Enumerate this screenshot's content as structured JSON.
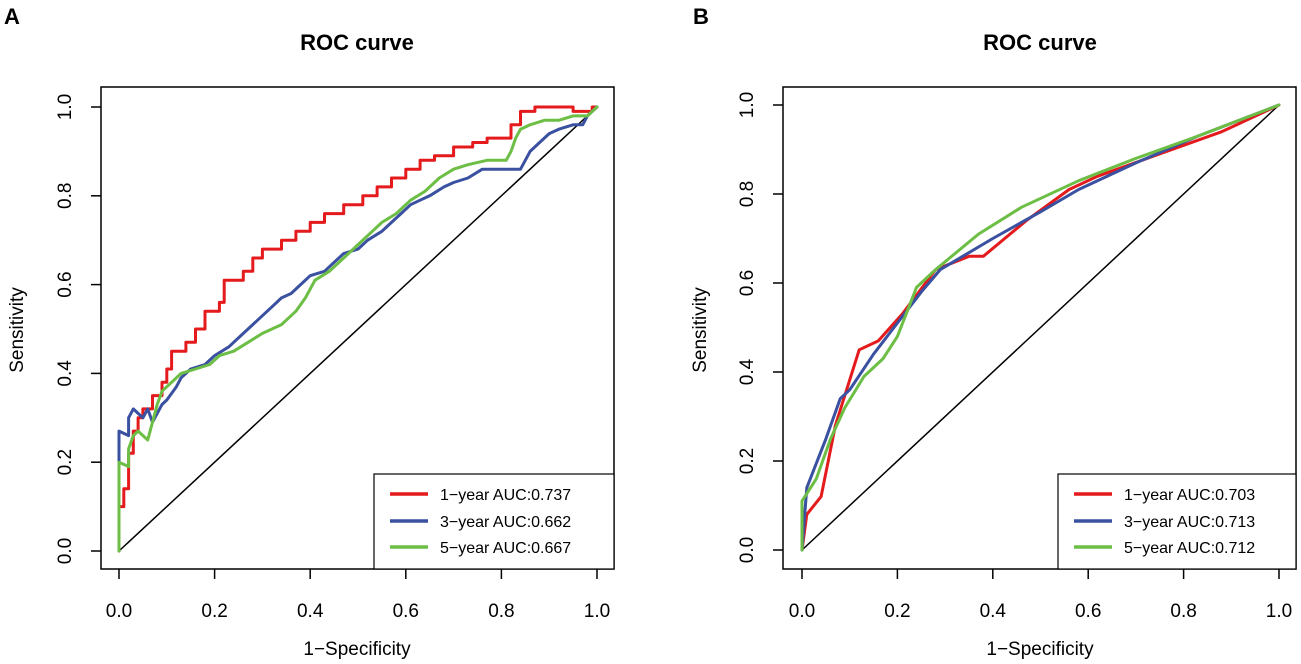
{
  "colors": {
    "one_year": "#e41a1c",
    "three_year": "#3a50a0",
    "five_year": "#6cbe45",
    "diagonal": "#000000",
    "frame": "#000000"
  },
  "chart_data": [
    {
      "panel": "A",
      "type": "line",
      "title": "ROC curve",
      "xlabel": "1−Specificity",
      "ylabel": "Sensitivity",
      "xlim": [
        0,
        1
      ],
      "ylim": [
        0,
        1
      ],
      "xticks": [
        "0.0",
        "0.2",
        "0.4",
        "0.6",
        "0.8",
        "1.0"
      ],
      "yticks": [
        "0.0",
        "0.2",
        "0.4",
        "0.6",
        "0.8",
        "1.0"
      ],
      "legend_position": "bottom-right",
      "reference_line": [
        [
          0,
          0
        ],
        [
          1,
          1
        ]
      ],
      "series": [
        {
          "name": "1−year AUC:0.737",
          "color_key": "one_year",
          "points": [
            [
              0,
              0
            ],
            [
              0,
              0.1
            ],
            [
              0.01,
              0.1
            ],
            [
              0.01,
              0.14
            ],
            [
              0.02,
              0.14
            ],
            [
              0.02,
              0.22
            ],
            [
              0.03,
              0.22
            ],
            [
              0.03,
              0.27
            ],
            [
              0.04,
              0.27
            ],
            [
              0.04,
              0.3
            ],
            [
              0.05,
              0.3
            ],
            [
              0.05,
              0.32
            ],
            [
              0.07,
              0.32
            ],
            [
              0.07,
              0.35
            ],
            [
              0.09,
              0.35
            ],
            [
              0.09,
              0.38
            ],
            [
              0.1,
              0.38
            ],
            [
              0.1,
              0.41
            ],
            [
              0.11,
              0.41
            ],
            [
              0.11,
              0.45
            ],
            [
              0.14,
              0.45
            ],
            [
              0.14,
              0.47
            ],
            [
              0.16,
              0.47
            ],
            [
              0.16,
              0.5
            ],
            [
              0.18,
              0.5
            ],
            [
              0.18,
              0.54
            ],
            [
              0.21,
              0.54
            ],
            [
              0.21,
              0.56
            ],
            [
              0.22,
              0.56
            ],
            [
              0.22,
              0.61
            ],
            [
              0.26,
              0.61
            ],
            [
              0.26,
              0.63
            ],
            [
              0.28,
              0.63
            ],
            [
              0.28,
              0.66
            ],
            [
              0.3,
              0.66
            ],
            [
              0.3,
              0.68
            ],
            [
              0.34,
              0.68
            ],
            [
              0.34,
              0.7
            ],
            [
              0.37,
              0.7
            ],
            [
              0.37,
              0.72
            ],
            [
              0.4,
              0.72
            ],
            [
              0.4,
              0.74
            ],
            [
              0.43,
              0.74
            ],
            [
              0.43,
              0.76
            ],
            [
              0.47,
              0.76
            ],
            [
              0.47,
              0.78
            ],
            [
              0.51,
              0.78
            ],
            [
              0.51,
              0.8
            ],
            [
              0.54,
              0.8
            ],
            [
              0.54,
              0.82
            ],
            [
              0.57,
              0.82
            ],
            [
              0.57,
              0.84
            ],
            [
              0.6,
              0.84
            ],
            [
              0.6,
              0.86
            ],
            [
              0.63,
              0.86
            ],
            [
              0.63,
              0.88
            ],
            [
              0.66,
              0.88
            ],
            [
              0.66,
              0.89
            ],
            [
              0.7,
              0.89
            ],
            [
              0.7,
              0.91
            ],
            [
              0.74,
              0.91
            ],
            [
              0.74,
              0.92
            ],
            [
              0.77,
              0.92
            ],
            [
              0.77,
              0.93
            ],
            [
              0.82,
              0.93
            ],
            [
              0.82,
              0.96
            ],
            [
              0.84,
              0.96
            ],
            [
              0.84,
              0.99
            ],
            [
              0.87,
              0.99
            ],
            [
              0.87,
              1.0
            ],
            [
              0.95,
              1.0
            ],
            [
              0.95,
              0.99
            ],
            [
              0.99,
              0.99
            ],
            [
              0.99,
              1.0
            ],
            [
              1.0,
              1.0
            ]
          ]
        },
        {
          "name": "3−year AUC:0.662",
          "color_key": "three_year",
          "points": [
            [
              0,
              0
            ],
            [
              0,
              0.27
            ],
            [
              0.02,
              0.26
            ],
            [
              0.02,
              0.3
            ],
            [
              0.03,
              0.32
            ],
            [
              0.04,
              0.31
            ],
            [
              0.05,
              0.3
            ],
            [
              0.06,
              0.32
            ],
            [
              0.07,
              0.29
            ],
            [
              0.08,
              0.31
            ],
            [
              0.09,
              0.33
            ],
            [
              0.1,
              0.34
            ],
            [
              0.12,
              0.37
            ],
            [
              0.13,
              0.39
            ],
            [
              0.14,
              0.4
            ],
            [
              0.15,
              0.41
            ],
            [
              0.18,
              0.42
            ],
            [
              0.2,
              0.44
            ],
            [
              0.23,
              0.46
            ],
            [
              0.26,
              0.49
            ],
            [
              0.28,
              0.51
            ],
            [
              0.3,
              0.53
            ],
            [
              0.32,
              0.55
            ],
            [
              0.34,
              0.57
            ],
            [
              0.36,
              0.58
            ],
            [
              0.38,
              0.6
            ],
            [
              0.4,
              0.62
            ],
            [
              0.43,
              0.63
            ],
            [
              0.45,
              0.65
            ],
            [
              0.47,
              0.67
            ],
            [
              0.5,
              0.68
            ],
            [
              0.52,
              0.7
            ],
            [
              0.55,
              0.72
            ],
            [
              0.57,
              0.74
            ],
            [
              0.59,
              0.76
            ],
            [
              0.61,
              0.78
            ],
            [
              0.63,
              0.79
            ],
            [
              0.65,
              0.8
            ],
            [
              0.68,
              0.82
            ],
            [
              0.7,
              0.83
            ],
            [
              0.73,
              0.84
            ],
            [
              0.76,
              0.86
            ],
            [
              0.8,
              0.86
            ],
            [
              0.84,
              0.86
            ],
            [
              0.85,
              0.88
            ],
            [
              0.86,
              0.9
            ],
            [
              0.88,
              0.92
            ],
            [
              0.9,
              0.94
            ],
            [
              0.92,
              0.95
            ],
            [
              0.95,
              0.96
            ],
            [
              0.97,
              0.96
            ],
            [
              0.98,
              0.98
            ],
            [
              1.0,
              1.0
            ]
          ]
        },
        {
          "name": "5−year AUC:0.667",
          "color_key": "five_year",
          "points": [
            [
              0,
              0
            ],
            [
              0,
              0.2
            ],
            [
              0.02,
              0.19
            ],
            [
              0.02,
              0.23
            ],
            [
              0.03,
              0.26
            ],
            [
              0.04,
              0.27
            ],
            [
              0.06,
              0.25
            ],
            [
              0.07,
              0.29
            ],
            [
              0.08,
              0.33
            ],
            [
              0.09,
              0.36
            ],
            [
              0.11,
              0.38
            ],
            [
              0.13,
              0.4
            ],
            [
              0.16,
              0.41
            ],
            [
              0.19,
              0.42
            ],
            [
              0.21,
              0.44
            ],
            [
              0.24,
              0.45
            ],
            [
              0.27,
              0.47
            ],
            [
              0.3,
              0.49
            ],
            [
              0.34,
              0.51
            ],
            [
              0.37,
              0.54
            ],
            [
              0.39,
              0.57
            ],
            [
              0.41,
              0.61
            ],
            [
              0.44,
              0.63
            ],
            [
              0.47,
              0.66
            ],
            [
              0.5,
              0.69
            ],
            [
              0.53,
              0.72
            ],
            [
              0.55,
              0.74
            ],
            [
              0.58,
              0.76
            ],
            [
              0.61,
              0.79
            ],
            [
              0.64,
              0.81
            ],
            [
              0.67,
              0.84
            ],
            [
              0.7,
              0.86
            ],
            [
              0.73,
              0.87
            ],
            [
              0.77,
              0.88
            ],
            [
              0.81,
              0.88
            ],
            [
              0.82,
              0.9
            ],
            [
              0.83,
              0.93
            ],
            [
              0.84,
              0.95
            ],
            [
              0.86,
              0.96
            ],
            [
              0.89,
              0.97
            ],
            [
              0.92,
              0.97
            ],
            [
              0.95,
              0.98
            ],
            [
              0.98,
              0.98
            ],
            [
              1.0,
              1.0
            ]
          ]
        }
      ]
    },
    {
      "panel": "B",
      "type": "line",
      "title": "ROC curve",
      "xlabel": "1−Specificity",
      "ylabel": "Sensitivity",
      "xlim": [
        0,
        1
      ],
      "ylim": [
        0,
        1
      ],
      "xticks": [
        "0.0",
        "0.2",
        "0.4",
        "0.6",
        "0.8",
        "1.0"
      ],
      "yticks": [
        "0.0",
        "0.2",
        "0.4",
        "0.6",
        "0.8",
        "1.0"
      ],
      "legend_position": "bottom-right",
      "reference_line": [
        [
          0,
          0
        ],
        [
          1,
          1
        ]
      ],
      "series": [
        {
          "name": "1−year AUC:0.703",
          "color_key": "one_year",
          "points": [
            [
              0,
              0
            ],
            [
              0.01,
              0.08
            ],
            [
              0.04,
              0.12
            ],
            [
              0.07,
              0.28
            ],
            [
              0.12,
              0.45
            ],
            [
              0.16,
              0.47
            ],
            [
              0.21,
              0.53
            ],
            [
              0.28,
              0.63
            ],
            [
              0.35,
              0.66
            ],
            [
              0.38,
              0.66
            ],
            [
              0.47,
              0.74
            ],
            [
              0.56,
              0.81
            ],
            [
              0.62,
              0.84
            ],
            [
              0.75,
              0.89
            ],
            [
              0.88,
              0.94
            ],
            [
              1.0,
              1.0
            ]
          ]
        },
        {
          "name": "3−year AUC:0.713",
          "color_key": "three_year",
          "points": [
            [
              0,
              0
            ],
            [
              0.01,
              0.14
            ],
            [
              0.05,
              0.25
            ],
            [
              0.08,
              0.34
            ],
            [
              0.1,
              0.36
            ],
            [
              0.15,
              0.44
            ],
            [
              0.2,
              0.51
            ],
            [
              0.25,
              0.58
            ],
            [
              0.29,
              0.63
            ],
            [
              0.4,
              0.7
            ],
            [
              0.5,
              0.76
            ],
            [
              0.58,
              0.81
            ],
            [
              0.7,
              0.87
            ],
            [
              0.83,
              0.93
            ],
            [
              1.0,
              1.0
            ]
          ]
        },
        {
          "name": "5−year AUC:0.712",
          "color_key": "five_year",
          "points": [
            [
              0,
              0
            ],
            [
              0,
              0.11
            ],
            [
              0.03,
              0.16
            ],
            [
              0.06,
              0.25
            ],
            [
              0.09,
              0.32
            ],
            [
              0.13,
              0.39
            ],
            [
              0.17,
              0.43
            ],
            [
              0.2,
              0.48
            ],
            [
              0.24,
              0.59
            ],
            [
              0.28,
              0.63
            ],
            [
              0.37,
              0.71
            ],
            [
              0.46,
              0.77
            ],
            [
              0.58,
              0.83
            ],
            [
              0.7,
              0.88
            ],
            [
              0.83,
              0.93
            ],
            [
              1.0,
              1.0
            ]
          ]
        }
      ]
    }
  ]
}
